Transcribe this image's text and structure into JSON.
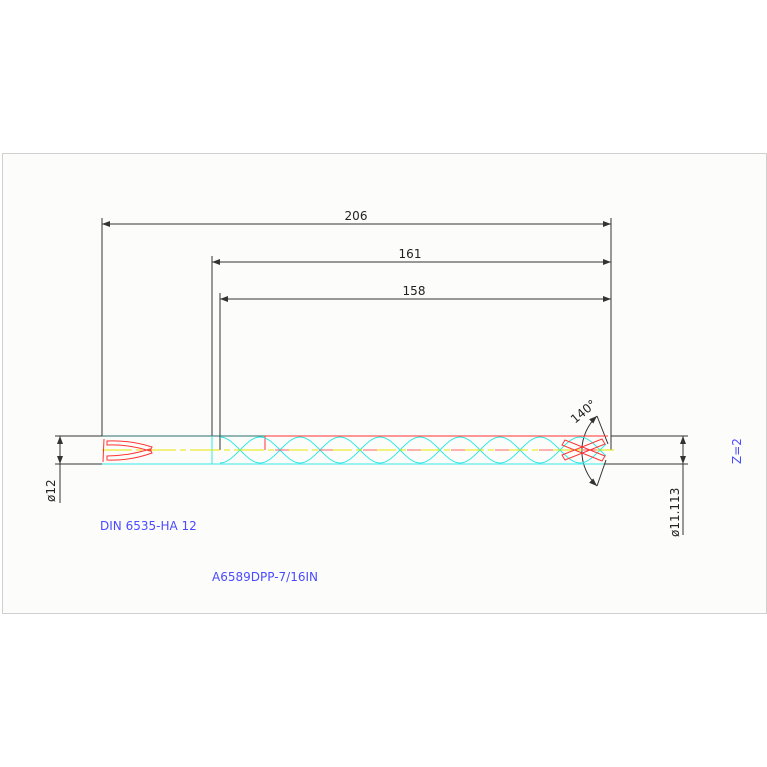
{
  "dimensions": {
    "overall": "206",
    "shank_to_tip": "161",
    "flute": "158",
    "shank_dia": "ø12",
    "drill_dia": "ø11.113",
    "point_angle": "140°"
  },
  "notes": {
    "flutes": "Z=2",
    "standard": "DIN  6535-HA  12",
    "part_number": "A6589DPP-7/16IN"
  },
  "colors": {
    "dimension": "#333333",
    "outline_cyan": "#33e6e6",
    "red": "#ff3333",
    "centerline": "#e6e600",
    "text_blue": "#4a4aff"
  }
}
